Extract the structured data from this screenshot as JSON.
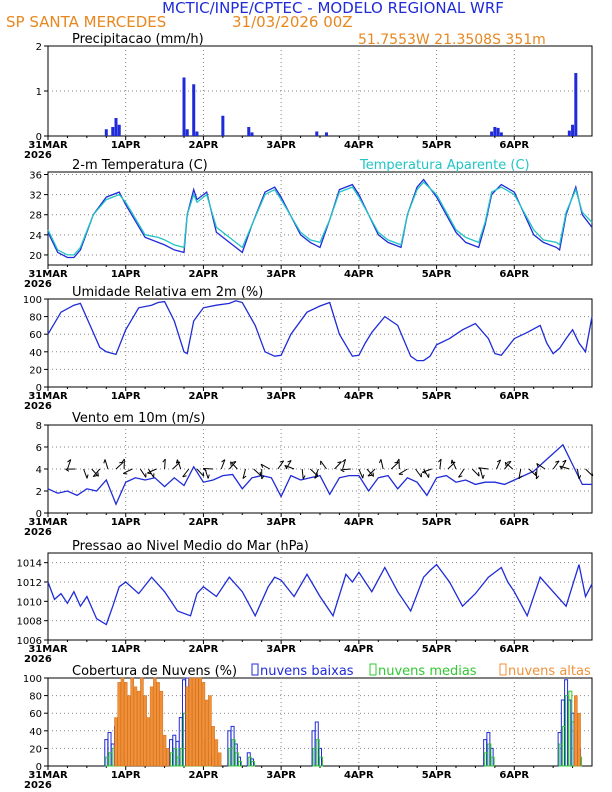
{
  "header": {
    "title": "MCTIC/INPE/CPTEC - MODELO REGIONAL WRF",
    "location": "SP SANTA MERCEDES",
    "run": "31/03/2026 00Z",
    "coords": "51.7553W 21.3508S 351m"
  },
  "colors": {
    "blue": "#1f2bd8",
    "cyan": "#22c4c4",
    "green": "#31c831",
    "orange": "#f0913a",
    "title_blue": "#1f2bd8",
    "orange_text": "#e8871e"
  },
  "time_axis": {
    "year": "2026",
    "labels": [
      "31MAR",
      "1APR",
      "2APR",
      "3APR",
      "4APR",
      "5APR",
      "6APR"
    ],
    "hours_total": 168
  },
  "chart_data": [
    {
      "id": "precip",
      "type": "bar",
      "title": "Precipitacao (mm/h)",
      "ylim": [
        0,
        2
      ],
      "yticks": [
        "0",
        "1",
        "2"
      ],
      "x_hours": [
        18,
        20,
        21,
        22,
        42,
        43,
        45,
        46,
        54,
        62,
        63,
        83,
        86,
        137,
        138,
        139,
        140,
        161,
        162,
        163
      ],
      "values": [
        0.15,
        0.2,
        0.4,
        0.25,
        1.3,
        0.15,
        1.15,
        0.1,
        0.45,
        0.2,
        0.08,
        0.1,
        0.08,
        0.1,
        0.2,
        0.18,
        0.08,
        0.12,
        0.25,
        1.4
      ]
    },
    {
      "id": "temp",
      "type": "line",
      "title": "2-m Temperatura (C)",
      "legend": "Temperatura Aparente (C)",
      "ylim": [
        18,
        36.5
      ],
      "yticks": [
        "20",
        "24",
        "28",
        "32",
        "36"
      ],
      "series": [
        {
          "name": "2-m Temperatura (C)",
          "x": [
            0,
            3,
            6,
            8,
            10,
            14,
            18,
            22,
            24,
            30,
            34,
            36,
            39,
            42,
            43,
            45,
            46,
            49,
            52,
            58,
            60,
            63,
            67,
            70,
            72,
            78,
            81,
            84,
            87,
            90,
            94,
            96,
            102,
            105,
            109,
            111,
            114,
            116,
            120,
            126,
            129,
            133,
            135,
            137,
            140,
            144,
            150,
            153,
            157,
            158,
            160,
            163,
            165,
            168
          ],
          "values": [
            24.5,
            20.5,
            19.5,
            19.5,
            21,
            28,
            31.5,
            32.5,
            30,
            23.5,
            22.5,
            22,
            21,
            20.5,
            28,
            33,
            31,
            32.5,
            24.5,
            21.5,
            20.5,
            26,
            32.5,
            33.5,
            31.5,
            24,
            22.5,
            21.5,
            27,
            33,
            34,
            32,
            24,
            22.5,
            21.5,
            28,
            33.5,
            35,
            31.5,
            24.5,
            22.5,
            21.5,
            26,
            32,
            34,
            32.5,
            24,
            22.5,
            21.5,
            21,
            28,
            33.5,
            28,
            25.5
          ]
        },
        {
          "name": "Temperatura Aparente (C)",
          "x": [
            0,
            3,
            6,
            8,
            10,
            14,
            18,
            22,
            24,
            30,
            34,
            36,
            39,
            42,
            43,
            45,
            46,
            49,
            52,
            58,
            60,
            63,
            67,
            70,
            72,
            78,
            81,
            84,
            87,
            90,
            94,
            96,
            102,
            105,
            109,
            111,
            114,
            116,
            120,
            126,
            129,
            133,
            135,
            137,
            140,
            144,
            150,
            153,
            157,
            158,
            160,
            163,
            165,
            168
          ],
          "values": [
            25,
            21,
            20,
            20,
            21.5,
            28,
            31,
            32,
            30.5,
            24,
            23.5,
            23,
            22,
            21.5,
            28,
            32,
            30.5,
            32,
            25.5,
            22.5,
            21.5,
            26,
            32,
            33,
            31,
            24.5,
            23,
            22.5,
            27,
            32.5,
            33.5,
            31.5,
            24.5,
            23,
            22,
            28,
            33,
            34.5,
            32,
            25,
            23.5,
            22.5,
            26.5,
            32.5,
            33.5,
            32,
            25,
            23,
            22.5,
            22,
            28.5,
            33,
            28.5,
            26.5
          ]
        }
      ]
    },
    {
      "id": "rh",
      "type": "line",
      "title": "Umidade Relativa em 2m (%)",
      "ylim": [
        0,
        100
      ],
      "yticks": [
        "0",
        "20",
        "40",
        "60",
        "80",
        "100"
      ],
      "series": [
        {
          "name": "Umidade Relativa em 2m (%)",
          "x": [
            0,
            4,
            8,
            10,
            13,
            16,
            18,
            21,
            24,
            28,
            32,
            34,
            36,
            39,
            42,
            43,
            45,
            48,
            52,
            56,
            58,
            60,
            64,
            67,
            70,
            72,
            75,
            80,
            84,
            87,
            90,
            94,
            96,
            98,
            100,
            104,
            108,
            112,
            114,
            116,
            118,
            120,
            124,
            128,
            132,
            136,
            138,
            140,
            144,
            148,
            152,
            154,
            156,
            158,
            160,
            162,
            164,
            166,
            168
          ],
          "values": [
            60,
            85,
            93,
            95,
            70,
            45,
            40,
            37,
            65,
            90,
            93,
            96,
            97,
            75,
            40,
            38,
            75,
            90,
            93,
            95,
            98,
            96,
            70,
            40,
            35,
            36,
            60,
            85,
            92,
            96,
            60,
            35,
            36,
            50,
            62,
            80,
            70,
            35,
            30,
            30,
            35,
            48,
            55,
            65,
            72,
            55,
            38,
            36,
            55,
            62,
            70,
            50,
            38,
            44,
            55,
            65,
            50,
            40,
            80
          ]
        }
      ]
    },
    {
      "id": "wind",
      "type": "line",
      "title": "Vento em 10m (m/s)",
      "ylim": [
        0,
        8
      ],
      "yticks": [
        "0",
        "2",
        "4",
        "6",
        "8"
      ],
      "series": [
        {
          "name": "Vento em 10m (m/s)",
          "x": [
            0,
            3,
            6,
            9,
            12,
            15,
            18,
            21,
            24,
            27,
            30,
            33,
            36,
            39,
            42,
            45,
            48,
            51,
            54,
            57,
            60,
            63,
            66,
            69,
            72,
            75,
            78,
            81,
            84,
            87,
            90,
            93,
            96,
            99,
            102,
            105,
            108,
            111,
            114,
            117,
            120,
            123,
            126,
            129,
            132,
            135,
            138,
            141,
            144,
            147,
            150,
            153,
            156,
            159,
            162,
            165,
            168
          ],
          "values": [
            2.2,
            1.8,
            2.0,
            1.6,
            2.2,
            2.0,
            3.0,
            0.8,
            2.8,
            3.2,
            3.0,
            3.2,
            2.4,
            3.2,
            2.5,
            4.2,
            2.8,
            3.0,
            3.4,
            3.5,
            2.2,
            3.2,
            3.4,
            3.2,
            1.5,
            3.4,
            3.0,
            3.2,
            3.4,
            1.7,
            3.2,
            3.4,
            3.4,
            2.0,
            3.2,
            3.4,
            2.2,
            3.2,
            2.8,
            1.6,
            3.2,
            3.4,
            2.8,
            3.0,
            2.6,
            2.8,
            2.8,
            2.6,
            3.0,
            3.4,
            3.8,
            4.6,
            5.4,
            6.2,
            4.4,
            2.6,
            2.6
          ]
        }
      ]
    },
    {
      "id": "pressure",
      "type": "line",
      "title": "Pressao ao Nivel Medio do Mar (hPa)",
      "ylim": [
        1006,
        1015
      ],
      "yticks": [
        "1006",
        "1008",
        "1010",
        "1012",
        "1014"
      ],
      "series": [
        {
          "name": "Pressao ao Nivel Medio do Mar (hPa)",
          "x": [
            0,
            2,
            4,
            6,
            8,
            10,
            12,
            15,
            18,
            20,
            22,
            24,
            28,
            32,
            36,
            40,
            44,
            46,
            48,
            52,
            56,
            60,
            64,
            68,
            70,
            72,
            76,
            80,
            84,
            88,
            92,
            94,
            96,
            100,
            104,
            108,
            112,
            116,
            118,
            120,
            124,
            128,
            132,
            136,
            140,
            142,
            144,
            148,
            152,
            156,
            160,
            164,
            166,
            168
          ],
          "values": [
            1012,
            1010.2,
            1010.8,
            1009.8,
            1011,
            1009.5,
            1010.5,
            1008.2,
            1007.6,
            1009.5,
            1011.5,
            1012,
            1010.8,
            1012.5,
            1011,
            1009,
            1008.5,
            1010.8,
            1011.5,
            1010.5,
            1012.5,
            1011,
            1008.5,
            1011.5,
            1012.5,
            1012.2,
            1010.5,
            1012.8,
            1010.5,
            1008.5,
            1012.8,
            1012,
            1013,
            1011,
            1013.5,
            1011,
            1009,
            1012.5,
            1013.2,
            1013.8,
            1012,
            1009.5,
            1010.8,
            1012.5,
            1013.5,
            1012,
            1011,
            1008.5,
            1012.5,
            1011,
            1009.5,
            1013.8,
            1010.5,
            1011.8
          ]
        }
      ]
    },
    {
      "id": "clouds",
      "type": "bar",
      "title": "Cobertura de Nuvens (%)",
      "legend": [
        "nuvens baixas",
        "nuvens medias",
        "nuvens altas"
      ],
      "ylim": [
        0,
        100
      ],
      "yticks": [
        "0",
        "20",
        "40",
        "60",
        "80",
        "100"
      ],
      "series": [
        {
          "name": "nuvens baixas",
          "x": [
            18,
            19,
            20,
            21,
            22,
            23,
            38,
            39,
            40,
            41,
            42,
            43,
            44,
            45,
            46,
            47,
            48,
            49,
            50,
            56,
            57,
            58,
            59,
            62,
            63,
            82,
            83,
            84,
            135,
            136,
            137,
            158,
            159,
            160,
            161,
            162,
            163,
            164
          ],
          "values": [
            30,
            38,
            25,
            45,
            35,
            20,
            30,
            35,
            28,
            55,
            98,
            100,
            85,
            50,
            98,
            60,
            30,
            15,
            10,
            40,
            45,
            25,
            10,
            15,
            8,
            40,
            50,
            20,
            30,
            38,
            20,
            38,
            75,
            98,
            75,
            60,
            40,
            20
          ]
        },
        {
          "name": "nuvens medias",
          "x": [
            18,
            19,
            20,
            21,
            22,
            23,
            38,
            39,
            40,
            41,
            42,
            43,
            44,
            45,
            46,
            47,
            48,
            49,
            50,
            56,
            57,
            58,
            59,
            62,
            63,
            82,
            83,
            84,
            135,
            136,
            137,
            158,
            159,
            160,
            161,
            162,
            163,
            164
          ],
          "values": [
            10,
            15,
            20,
            30,
            70,
            60,
            15,
            20,
            10,
            20,
            60,
            70,
            80,
            60,
            50,
            40,
            20,
            5,
            5,
            20,
            30,
            15,
            5,
            10,
            5,
            20,
            30,
            10,
            15,
            25,
            10,
            25,
            45,
            80,
            85,
            50,
            25,
            10
          ]
        },
        {
          "name": "nuvens altas",
          "x": [
            21,
            22,
            23,
            24,
            25,
            26,
            27,
            28,
            29,
            30,
            31,
            32,
            33,
            34,
            35,
            36,
            37,
            43,
            44,
            45,
            46,
            47,
            48,
            49,
            50,
            51,
            52,
            53,
            163,
            164
          ],
          "values": [
            55,
            95,
            100,
            95,
            80,
            100,
            90,
            85,
            100,
            80,
            55,
            90,
            100,
            95,
            85,
            35,
            20,
            90,
            100,
            100,
            100,
            100,
            95,
            75,
            80,
            45,
            30,
            15,
            80,
            60
          ]
        }
      ]
    }
  ]
}
